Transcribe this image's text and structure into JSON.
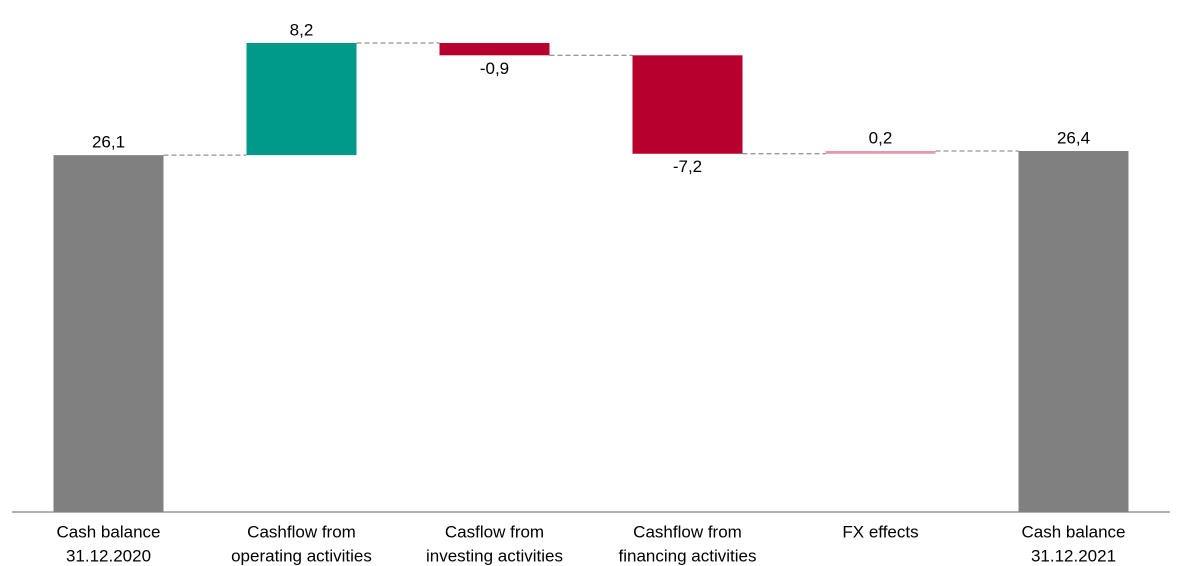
{
  "chart_data": {
    "type": "waterfall",
    "categories": [
      [
        "Cash balance",
        "31.12.2020"
      ],
      [
        "Cashflow from",
        "operating activities"
      ],
      [
        "Casflow from",
        "investing activities"
      ],
      [
        "Cashflow from",
        "financing activities"
      ],
      [
        "FX effects"
      ],
      [
        "Cash balance",
        "31.12.2021"
      ]
    ],
    "values": [
      26.1,
      8.2,
      -0.9,
      -7.2,
      0.2,
      26.4
    ],
    "value_labels": [
      "26,1",
      "8,2",
      "-0,9",
      "-7,2",
      "0,2",
      "26,4"
    ],
    "totals": [
      true,
      false,
      false,
      false,
      false,
      true
    ],
    "colors": [
      "#808080",
      "#009a8a",
      "#b8002f",
      "#b8002f",
      "#e995a9",
      "#808080"
    ]
  }
}
